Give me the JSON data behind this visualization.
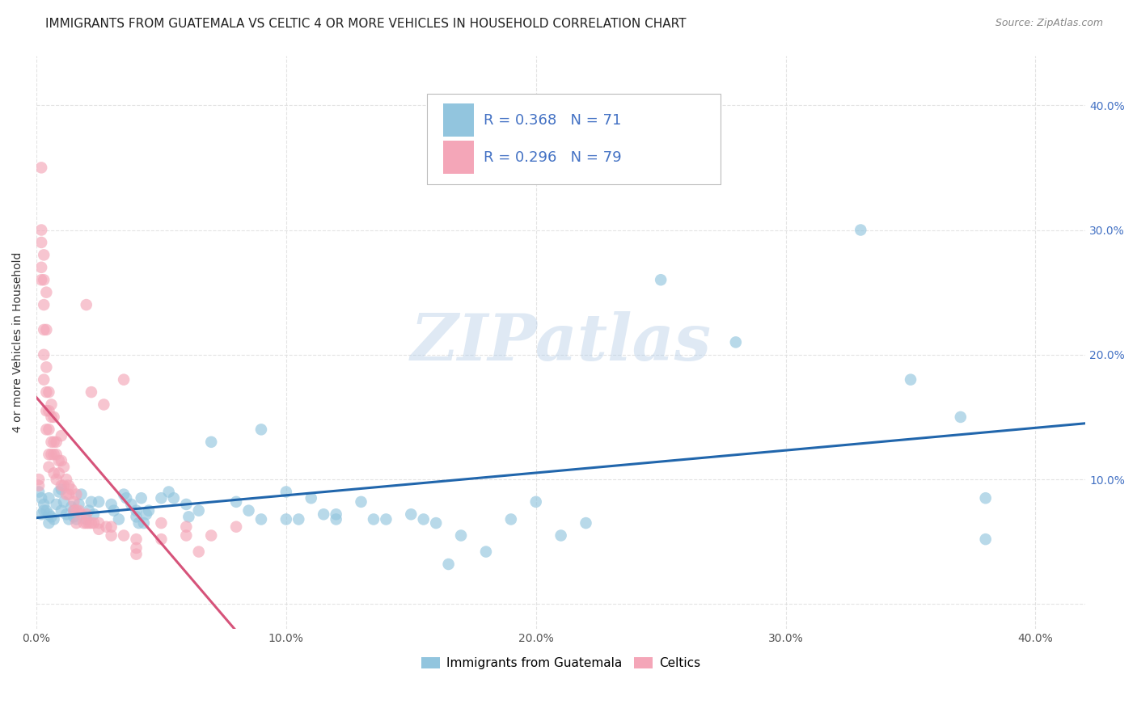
{
  "title": "IMMIGRANTS FROM GUATEMALA VS CELTIC 4 OR MORE VEHICLES IN HOUSEHOLD CORRELATION CHART",
  "source": "Source: ZipAtlas.com",
  "ylabel": "4 or more Vehicles in Household",
  "xlim": [
    0.0,
    0.42
  ],
  "ylim": [
    -0.02,
    0.44
  ],
  "xticks": [
    0.0,
    0.1,
    0.2,
    0.3,
    0.4
  ],
  "yticks": [
    0.0,
    0.1,
    0.2,
    0.3,
    0.4
  ],
  "xticklabels": [
    "0.0%",
    "10.0%",
    "20.0%",
    "30.0%",
    "40.0%"
  ],
  "yticklabels_right": [
    "",
    "10.0%",
    "20.0%",
    "30.0%",
    "40.0%"
  ],
  "blue_color": "#92c5de",
  "pink_color": "#f4a6b8",
  "blue_line_color": "#2166ac",
  "pink_line_color": "#d6537a",
  "pink_dash_color": "#c0a0a8",
  "legend_label_blue": "Immigrants from Guatemala",
  "legend_label_pink": "Celtics",
  "watermark": "ZIPatlas",
  "background_color": "#ffffff",
  "grid_color": "#dddddd",
  "blue_scatter": [
    [
      0.001,
      0.09
    ],
    [
      0.002,
      0.085
    ],
    [
      0.003,
      0.08
    ],
    [
      0.004,
      0.075
    ],
    [
      0.005,
      0.085
    ],
    [
      0.005,
      0.072
    ],
    [
      0.006,
      0.07
    ],
    [
      0.007,
      0.068
    ],
    [
      0.008,
      0.08
    ],
    [
      0.009,
      0.09
    ],
    [
      0.01,
      0.092
    ],
    [
      0.01,
      0.075
    ],
    [
      0.011,
      0.082
    ],
    [
      0.012,
      0.072
    ],
    [
      0.013,
      0.068
    ],
    [
      0.014,
      0.078
    ],
    [
      0.015,
      0.075
    ],
    [
      0.015,
      0.07
    ],
    [
      0.016,
      0.068
    ],
    [
      0.017,
      0.08
    ],
    [
      0.018,
      0.088
    ],
    [
      0.02,
      0.068
    ],
    [
      0.021,
      0.075
    ],
    [
      0.022,
      0.082
    ],
    [
      0.023,
      0.072
    ],
    [
      0.025,
      0.082
    ],
    [
      0.03,
      0.08
    ],
    [
      0.031,
      0.075
    ],
    [
      0.033,
      0.068
    ],
    [
      0.035,
      0.088
    ],
    [
      0.036,
      0.085
    ],
    [
      0.038,
      0.08
    ],
    [
      0.04,
      0.075
    ],
    [
      0.04,
      0.07
    ],
    [
      0.041,
      0.065
    ],
    [
      0.042,
      0.085
    ],
    [
      0.043,
      0.065
    ],
    [
      0.044,
      0.072
    ],
    [
      0.045,
      0.075
    ],
    [
      0.05,
      0.085
    ],
    [
      0.053,
      0.09
    ],
    [
      0.055,
      0.085
    ],
    [
      0.06,
      0.08
    ],
    [
      0.061,
      0.07
    ],
    [
      0.065,
      0.075
    ],
    [
      0.07,
      0.13
    ],
    [
      0.08,
      0.082
    ],
    [
      0.085,
      0.075
    ],
    [
      0.09,
      0.068
    ],
    [
      0.09,
      0.14
    ],
    [
      0.1,
      0.09
    ],
    [
      0.1,
      0.068
    ],
    [
      0.105,
      0.068
    ],
    [
      0.11,
      0.085
    ],
    [
      0.115,
      0.072
    ],
    [
      0.12,
      0.068
    ],
    [
      0.12,
      0.072
    ],
    [
      0.13,
      0.082
    ],
    [
      0.135,
      0.068
    ],
    [
      0.14,
      0.068
    ],
    [
      0.15,
      0.072
    ],
    [
      0.155,
      0.068
    ],
    [
      0.16,
      0.065
    ],
    [
      0.165,
      0.032
    ],
    [
      0.17,
      0.055
    ],
    [
      0.18,
      0.042
    ],
    [
      0.19,
      0.068
    ],
    [
      0.2,
      0.082
    ],
    [
      0.21,
      0.055
    ],
    [
      0.22,
      0.065
    ],
    [
      0.25,
      0.26
    ],
    [
      0.28,
      0.21
    ],
    [
      0.33,
      0.3
    ],
    [
      0.35,
      0.18
    ],
    [
      0.37,
      0.15
    ],
    [
      0.38,
      0.052
    ],
    [
      0.38,
      0.085
    ],
    [
      0.005,
      0.065
    ],
    [
      0.003,
      0.075
    ],
    [
      0.002,
      0.072
    ]
  ],
  "pink_scatter": [
    [
      0.001,
      0.1
    ],
    [
      0.001,
      0.095
    ],
    [
      0.002,
      0.35
    ],
    [
      0.002,
      0.3
    ],
    [
      0.002,
      0.29
    ],
    [
      0.002,
      0.27
    ],
    [
      0.002,
      0.26
    ],
    [
      0.003,
      0.28
    ],
    [
      0.003,
      0.26
    ],
    [
      0.003,
      0.24
    ],
    [
      0.003,
      0.22
    ],
    [
      0.003,
      0.2
    ],
    [
      0.003,
      0.18
    ],
    [
      0.004,
      0.25
    ],
    [
      0.004,
      0.22
    ],
    [
      0.004,
      0.19
    ],
    [
      0.004,
      0.17
    ],
    [
      0.004,
      0.155
    ],
    [
      0.004,
      0.14
    ],
    [
      0.005,
      0.17
    ],
    [
      0.005,
      0.155
    ],
    [
      0.005,
      0.14
    ],
    [
      0.005,
      0.12
    ],
    [
      0.005,
      0.11
    ],
    [
      0.006,
      0.16
    ],
    [
      0.006,
      0.15
    ],
    [
      0.006,
      0.13
    ],
    [
      0.006,
      0.12
    ],
    [
      0.007,
      0.15
    ],
    [
      0.007,
      0.13
    ],
    [
      0.007,
      0.12
    ],
    [
      0.007,
      0.105
    ],
    [
      0.008,
      0.13
    ],
    [
      0.008,
      0.12
    ],
    [
      0.008,
      0.1
    ],
    [
      0.009,
      0.115
    ],
    [
      0.009,
      0.105
    ],
    [
      0.01,
      0.135
    ],
    [
      0.01,
      0.115
    ],
    [
      0.01,
      0.095
    ],
    [
      0.011,
      0.11
    ],
    [
      0.011,
      0.095
    ],
    [
      0.012,
      0.1
    ],
    [
      0.012,
      0.088
    ],
    [
      0.013,
      0.095
    ],
    [
      0.013,
      0.088
    ],
    [
      0.014,
      0.092
    ],
    [
      0.015,
      0.082
    ],
    [
      0.015,
      0.075
    ],
    [
      0.016,
      0.088
    ],
    [
      0.016,
      0.075
    ],
    [
      0.016,
      0.065
    ],
    [
      0.017,
      0.075
    ],
    [
      0.018,
      0.072
    ],
    [
      0.019,
      0.065
    ],
    [
      0.02,
      0.24
    ],
    [
      0.02,
      0.072
    ],
    [
      0.02,
      0.065
    ],
    [
      0.021,
      0.065
    ],
    [
      0.022,
      0.17
    ],
    [
      0.022,
      0.065
    ],
    [
      0.023,
      0.065
    ],
    [
      0.025,
      0.065
    ],
    [
      0.025,
      0.06
    ],
    [
      0.027,
      0.16
    ],
    [
      0.028,
      0.062
    ],
    [
      0.03,
      0.062
    ],
    [
      0.03,
      0.055
    ],
    [
      0.035,
      0.18
    ],
    [
      0.035,
      0.055
    ],
    [
      0.04,
      0.052
    ],
    [
      0.04,
      0.045
    ],
    [
      0.04,
      0.04
    ],
    [
      0.05,
      0.065
    ],
    [
      0.05,
      0.052
    ],
    [
      0.06,
      0.062
    ],
    [
      0.06,
      0.055
    ],
    [
      0.065,
      0.042
    ],
    [
      0.07,
      0.055
    ],
    [
      0.08,
      0.062
    ]
  ],
  "title_fontsize": 11,
  "axis_fontsize": 10,
  "tick_fontsize": 10,
  "right_tick_color": "#4472c4",
  "legend_text_color": "#4472c4",
  "legend_number_color": "#4472c4"
}
